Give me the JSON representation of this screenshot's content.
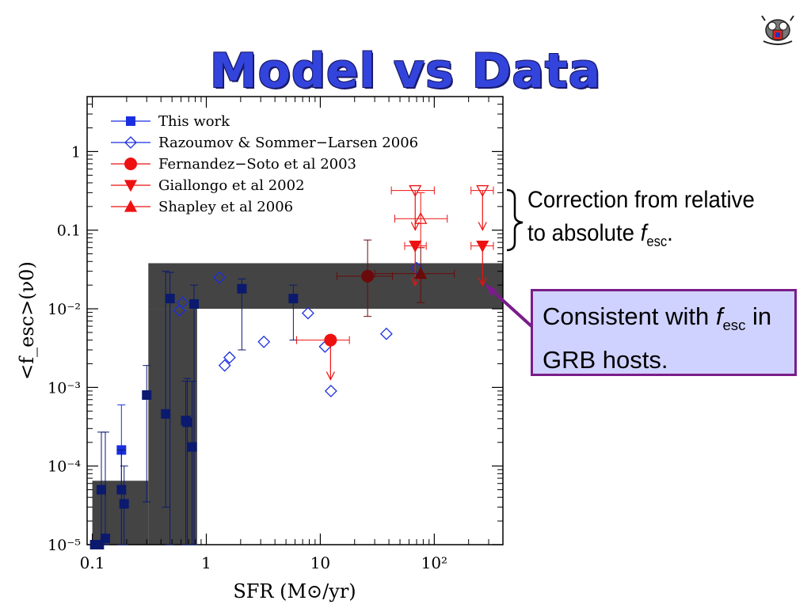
{
  "slide": {
    "title": "Model vs Data",
    "annotation_correction": {
      "line1": "Correction from relative",
      "line2_prefix": "to absolute ",
      "f": "f",
      "sub": "esc",
      "suffix": "."
    },
    "annotation_consistent": {
      "prefix": "Consistent with ",
      "f": "f",
      "sub": "esc",
      "suffix": " in",
      "line2": "GRB hosts."
    },
    "colors": {
      "title": "#3344dd",
      "box_fill": "#cfd2ff",
      "box_border": "#7a1c8a",
      "navy": "#0b1a6e",
      "blue": "#1a2fe0",
      "red": "#ee1111",
      "shade": "#3a3a3a"
    }
  },
  "chart_data": {
    "type": "scatter",
    "xscale": "log",
    "yscale": "log",
    "xlim": [
      0.09,
      400
    ],
    "ylim": [
      1e-05,
      5
    ],
    "xlabel": "SFR (M⊙/yr)",
    "ylabel": "<f_esc>(ν0)",
    "x_ticks": [
      {
        "v": 0.1,
        "label": "0.1"
      },
      {
        "v": 1,
        "label": "1"
      },
      {
        "v": 10,
        "label": "10"
      },
      {
        "v": 100,
        "label": "10²"
      }
    ],
    "y_ticks": [
      {
        "v": 1e-05,
        "label": "10⁻⁵"
      },
      {
        "v": 0.0001,
        "label": "10⁻⁴"
      },
      {
        "v": 0.001,
        "label": "10⁻³"
      },
      {
        "v": 0.01,
        "label": "10⁻²"
      },
      {
        "v": 0.1,
        "label": "0.1"
      },
      {
        "v": 1,
        "label": "1"
      }
    ],
    "legend": {
      "placement": "top-left",
      "entries": [
        {
          "label": "This work",
          "marker": "square",
          "color": "#1a2fe0"
        },
        {
          "label": "Razoumov & Sommer−Larsen 2006",
          "marker": "diamond-open",
          "color": "#1a2fe0"
        },
        {
          "label": "Fernandez−Soto et al 2003",
          "marker": "circle",
          "color": "#ee1111"
        },
        {
          "label": "Giallongo et al 2002",
          "marker": "triangle-down",
          "color": "#ee1111"
        },
        {
          "label": "Shapley et al 2006",
          "marker": "triangle-up",
          "color": "#ee1111"
        }
      ]
    },
    "shaded_regions": [
      {
        "x": [
          0.1,
          0.31
        ],
        "y": [
          1e-05,
          6.5e-05
        ]
      },
      {
        "x": [
          0.31,
          0.83
        ],
        "y": [
          1e-05,
          0.01
        ]
      },
      {
        "x": [
          0.31,
          400
        ],
        "y": [
          0.01,
          0.038
        ]
      }
    ],
    "series": [
      {
        "name": "This work",
        "marker": "square",
        "color": "#0b1a6e",
        "points": [
          {
            "x": 0.105,
            "y": 1e-05
          },
          {
            "x": 0.115,
            "y": 1e-05
          },
          {
            "x": 0.12,
            "y": 5e-05,
            "ylo": 1e-05,
            "yhi": 0.00027
          },
          {
            "x": 0.13,
            "y": 1.2e-05,
            "ylo": 1e-05,
            "yhi": 0.00027
          },
          {
            "x": 0.18,
            "y": 0.00016,
            "ylo": 1e-05,
            "yhi": 0.0006,
            "color": "#1a2fe0"
          },
          {
            "x": 0.18,
            "y": 5e-05,
            "ylo": 1e-05,
            "yhi": 0.00016
          },
          {
            "x": 0.19,
            "y": 3.3e-05,
            "ylo": 1e-05,
            "yhi": 0.0001
          },
          {
            "x": 0.3,
            "y": 0.0008,
            "ylo": 3.5e-05,
            "yhi": 0.0019
          },
          {
            "x": 0.44,
            "y": 0.00046,
            "ylo": 3e-05,
            "yhi": 0.03
          },
          {
            "x": 0.48,
            "y": 0.0135,
            "ylo": 1e-05,
            "yhi": 0.029
          },
          {
            "x": 0.66,
            "y": 0.00038,
            "ylo": 1e-05,
            "yhi": 0.0012
          },
          {
            "x": 0.68,
            "y": 0.00036,
            "ylo": 1e-05,
            "yhi": 0.0013
          },
          {
            "x": 0.75,
            "y": 0.000175,
            "ylo": 1e-05,
            "yhi": 0.0012
          },
          {
            "x": 0.78,
            "y": 0.0115,
            "ylo": 1e-05,
            "yhi": 0.02
          },
          {
            "x": 2.05,
            "y": 0.018,
            "ylo": 0.003,
            "yhi": 0.024
          },
          {
            "x": 5.8,
            "y": 0.0135,
            "ylo": 0.004,
            "yhi": 0.02
          }
        ]
      },
      {
        "name": "Razoumov & Sommer−Larsen 2006",
        "marker": "diamond-open",
        "color": "#1a2fe0",
        "points": [
          {
            "x": 0.58,
            "y": 0.0095
          },
          {
            "x": 0.62,
            "y": 0.012
          },
          {
            "x": 1.3,
            "y": 0.025
          },
          {
            "x": 1.45,
            "y": 0.0019
          },
          {
            "x": 1.6,
            "y": 0.0024
          },
          {
            "x": 3.2,
            "y": 0.0038
          },
          {
            "x": 7.8,
            "y": 0.0088
          },
          {
            "x": 11,
            "y": 0.0033
          },
          {
            "x": 12.4,
            "y": 0.0009
          },
          {
            "x": 38,
            "y": 0.0048
          },
          {
            "x": 70,
            "y": 0.033
          }
        ]
      },
      {
        "name": "Fernandez−Soto et al 2003",
        "marker": "circle",
        "color": "#ee1111",
        "points": [
          {
            "x": 12.3,
            "y": 0.004,
            "xlo": 6.2,
            "xhi": 18,
            "limit": "upper"
          },
          {
            "x": 26,
            "y": 0.026,
            "xlo": 14,
            "xhi": 43,
            "ylo": 0.008,
            "yhi": 0.075,
            "color": "#6b0a0a"
          }
        ]
      },
      {
        "name": "Giallongo et al 2002",
        "marker": "triangle-down",
        "color": "#ee1111",
        "points": [
          {
            "x": 68,
            "y": 0.063,
            "xlo": 55,
            "xhi": 85,
            "limit": "upper"
          },
          {
            "x": 265,
            "y": 0.063,
            "xlo": 210,
            "xhi": 330,
            "limit": "upper"
          }
        ]
      },
      {
        "name": "Giallongo et al 2002",
        "marker": "triangle-down-open",
        "color": "#ee1111",
        "points": [
          {
            "x": 68,
            "y": 0.32,
            "xlo": 42,
            "xhi": 100,
            "limit": "upper"
          },
          {
            "x": 265,
            "y": 0.32,
            "xlo": 210,
            "xhi": 330,
            "limit": "upper"
          }
        ]
      },
      {
        "name": "Shapley et al 2006",
        "marker": "triangle-up",
        "color": "#ee1111",
        "points": [
          {
            "x": 76,
            "y": 0.028,
            "xlo": 30,
            "xhi": 150,
            "ylo": 0.012,
            "yhi": 0.06,
            "color": "#6b0a0a"
          }
        ]
      },
      {
        "name": "Shapley et al 2006",
        "marker": "triangle-up-open",
        "color": "#ee1111",
        "points": [
          {
            "x": 76,
            "y": 0.14,
            "xlo": 45,
            "xhi": 130,
            "ylo": 0.06,
            "yhi": 0.3
          }
        ]
      }
    ]
  }
}
